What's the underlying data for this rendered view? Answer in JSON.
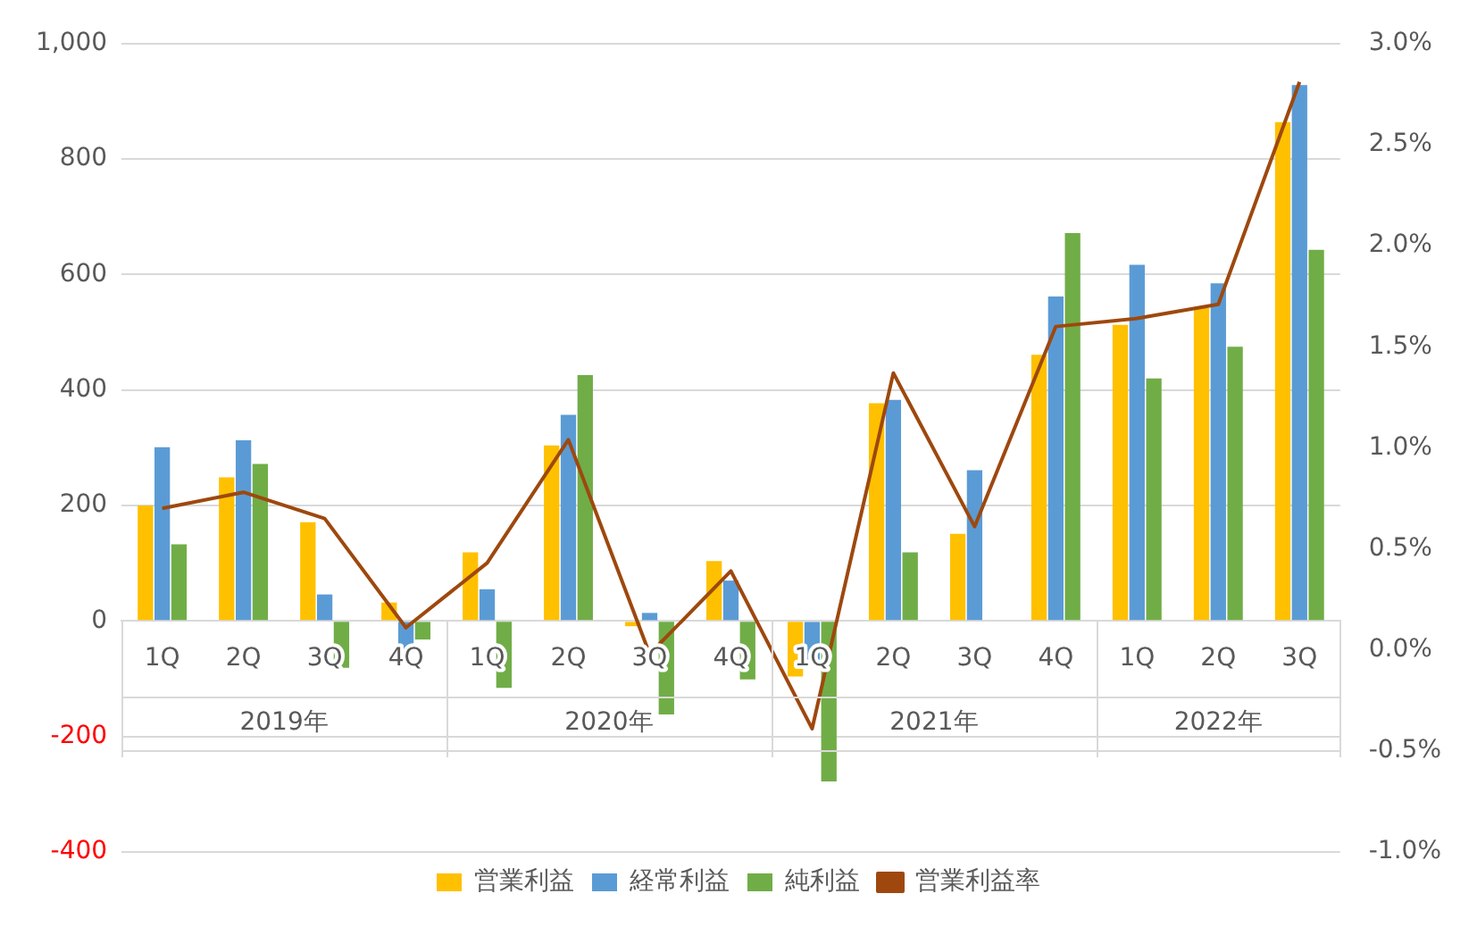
{
  "chart_data": {
    "type": "bar",
    "categories": [
      "1Q",
      "2Q",
      "3Q",
      "4Q",
      "1Q",
      "2Q",
      "3Q",
      "4Q",
      "1Q",
      "2Q",
      "3Q",
      "4Q",
      "1Q",
      "2Q",
      "3Q"
    ],
    "series": [
      {
        "name": "営業利益",
        "color": "#ffc000",
        "values": [
          200,
          249,
          171,
          32,
          119,
          304,
          -9,
          104,
          -96,
          377,
          151,
          461,
          513,
          542,
          864
        ]
      },
      {
        "name": "経常利益",
        "color": "#5b9bd5",
        "values": [
          301,
          313,
          46,
          -55,
          55,
          357,
          14,
          70,
          -67,
          383,
          261,
          562,
          617,
          585,
          928
        ]
      },
      {
        "name": "純利益",
        "color": "#70ad47",
        "values": [
          133,
          272,
          -81,
          -32,
          -116,
          426,
          -162,
          -101,
          -278,
          119,
          null,
          672,
          420,
          475,
          643
        ]
      },
      {
        "name": "営業利益率",
        "type": "line",
        "axis": "y2",
        "color": "#9e480e",
        "marker": "none",
        "values": [
          0.7,
          0.78,
          0.65,
          0.11,
          0.43,
          1.04,
          -0.02,
          0.39,
          -0.39,
          1.37,
          0.61,
          1.6,
          1.64,
          1.71,
          2.81
        ]
      }
    ],
    "annotations": [
      "2019年",
      "2020年",
      "2021年",
      "2022年"
    ],
    "ylim": [
      -400,
      1000
    ],
    "yticks": [
      -400,
      -200,
      0,
      200,
      400,
      600,
      800,
      {
        "value": 1000,
        "label": "1,000"
      }
    ],
    "y2lim": [
      -1,
      3
    ],
    "y2ticks": [
      {
        "value": -1,
        "label": "-1.0%"
      },
      {
        "value": -0.5,
        "label": "-0.5%"
      },
      {
        "value": 0,
        "label": "0.0%"
      },
      {
        "value": 0.5,
        "label": "0.5%"
      },
      {
        "value": 1,
        "label": "1.0%"
      },
      {
        "value": 1.5,
        "label": "1.5%"
      },
      {
        "value": 2,
        "label": "2.0%"
      },
      {
        "value": 2.5,
        "label": "2.5%"
      },
      {
        "value": 3,
        "label": "3.0%"
      }
    ],
    "grid": "y",
    "legend": "bottom"
  }
}
